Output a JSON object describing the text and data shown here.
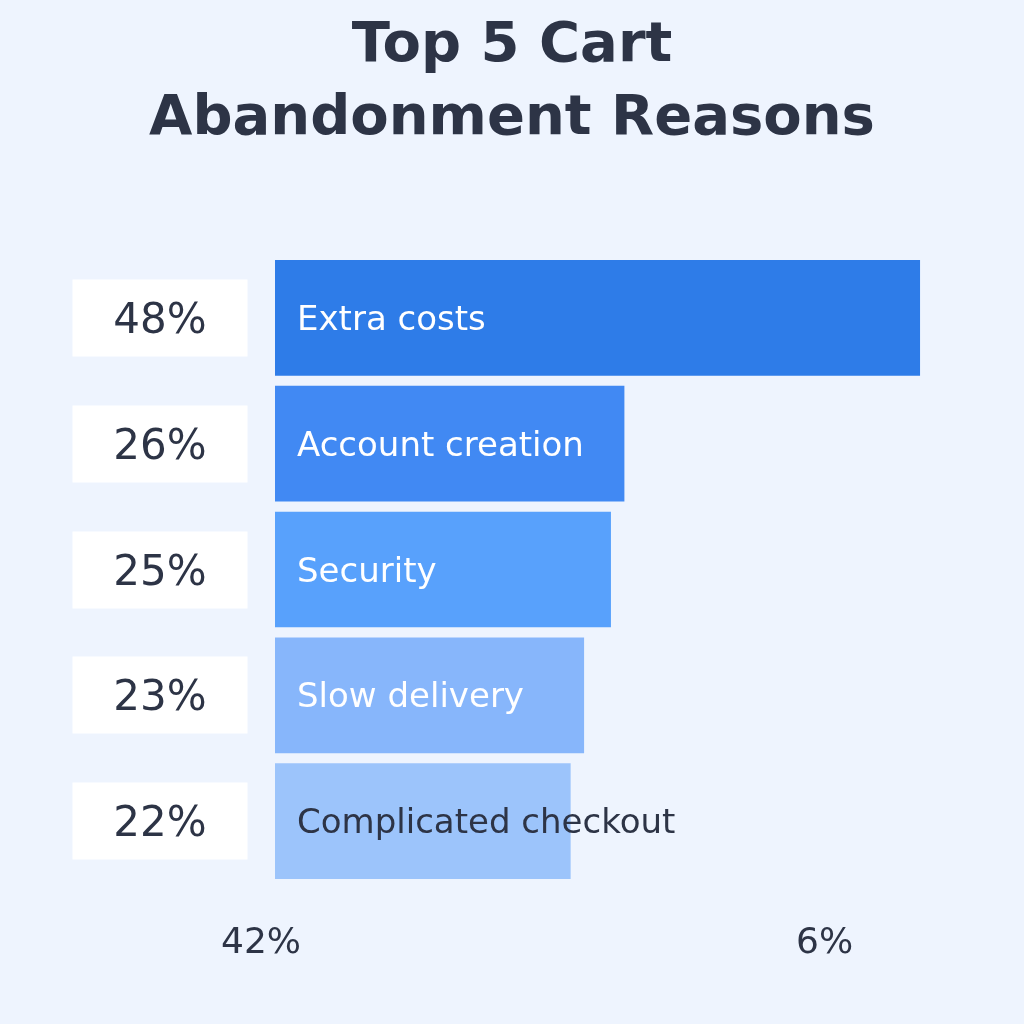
{
  "chart_data": {
    "type": "bar",
    "orientation": "horizontal",
    "title": "Top 5 Cart\nAbandonment Reasons",
    "categories": [
      "Extra costs",
      "Account creation",
      "Security",
      "Slow delivery",
      "Complicated checkout"
    ],
    "values": [
      48,
      26,
      25,
      23,
      22
    ],
    "value_labels": [
      "48%",
      "26%",
      "25%",
      "23%",
      "22%"
    ],
    "colors": [
      "#2e7ce8",
      "#4189f3",
      "#58a1fc",
      "#87b6fb",
      "#9cc4fb"
    ],
    "annotations": [
      "42%",
      "6%"
    ],
    "grid": false
  }
}
